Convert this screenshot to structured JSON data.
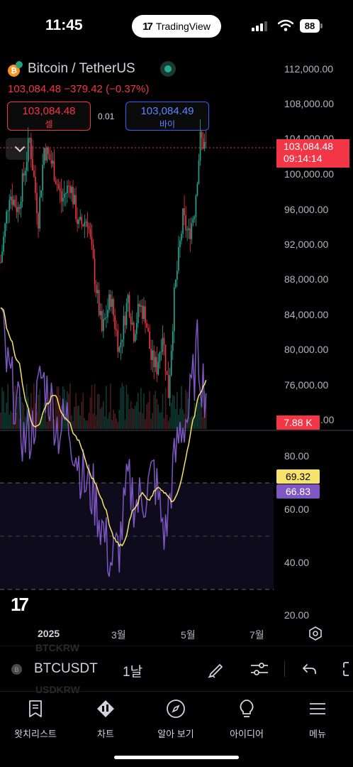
{
  "status_bar": {
    "time": "11:45",
    "app_pill": "TradingView",
    "battery": "88"
  },
  "header": {
    "coin_glyph": "₿",
    "title": "Bitcoin / TetherUS",
    "last_price": "103,084.48",
    "change": "−379.42",
    "change_pct": "(−0.37%)",
    "sell": {
      "price": "103,084.48",
      "label": "셀"
    },
    "buy": {
      "price": "103,084.49",
      "label": "바이"
    },
    "spread": "0.01"
  },
  "price_axis": {
    "labels": [
      "112,000.00",
      "108,000.00",
      "104,000.00",
      "100,000.00",
      "96,000.00",
      "92,000.00",
      "88,000.00",
      "84,000.00",
      "80,000.00",
      "76,000.00",
      ".00"
    ],
    "current_price": "103,084.48",
    "countdown": "09:14:14",
    "volume": "7.88 K"
  },
  "rsi_axis": {
    "labels": [
      "80.00",
      "60.00",
      "40.00",
      "20.00"
    ],
    "ma_value": "69.32",
    "rsi_value": "66.83"
  },
  "time_axis": [
    "2025",
    "3월",
    "5월",
    "7월"
  ],
  "toolbar": {
    "symbol_glyph": "B",
    "symbol": "BTCUSDT",
    "interval": "1날",
    "ghost_above": "BTCKRW",
    "ghost_below": "USDKRW"
  },
  "bottom_nav": [
    {
      "label": "왓치리스트",
      "icon": "watchlist-icon"
    },
    {
      "label": "차트",
      "icon": "chart-icon"
    },
    {
      "label": "알아 보기",
      "icon": "compass-icon"
    },
    {
      "label": "아이디어",
      "icon": "lightbulb-icon"
    },
    {
      "label": "메뉴",
      "icon": "menu-icon"
    }
  ],
  "colors": {
    "up": "#22ab94",
    "down": "#f23645",
    "rsi_line": "#7e57c2",
    "rsi_ma": "#f7e26b",
    "buy_accent": "#2962ff"
  }
}
